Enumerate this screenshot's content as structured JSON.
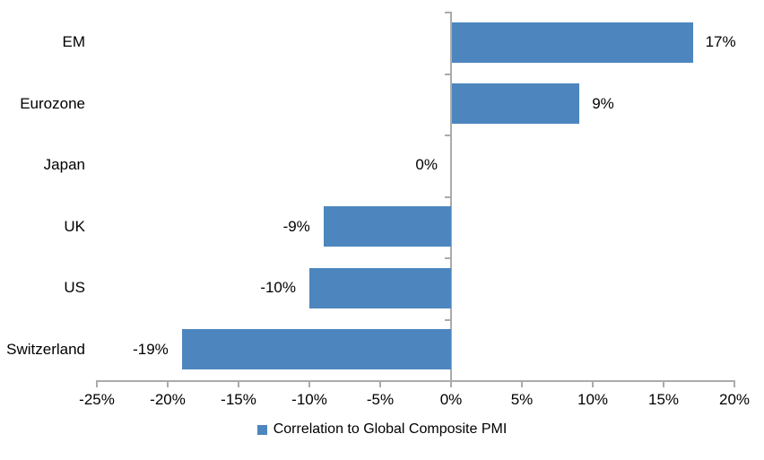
{
  "chart_data": {
    "type": "bar",
    "orientation": "horizontal",
    "title": "",
    "xlabel": "",
    "ylabel": "",
    "categories": [
      "EM",
      "Eurozone",
      "Japan",
      "UK",
      "US",
      "Switzerland"
    ],
    "values": [
      17,
      9,
      0,
      -9,
      -10,
      -19
    ],
    "value_labels": [
      "17%",
      "9%",
      "0%",
      "-9%",
      "-10%",
      "-19%"
    ],
    "series_name": "Correlation to Global Composite PMI",
    "xlim": [
      -25,
      20
    ],
    "x_tick_values": [
      -25,
      -20,
      -15,
      -10,
      -5,
      0,
      5,
      10,
      15,
      20
    ],
    "x_tick_labels": [
      "-25%",
      "-20%",
      "-15%",
      "-10%",
      "-5%",
      "0%",
      "5%",
      "10%",
      "15%",
      "20%"
    ],
    "grid": false,
    "legend_position": "bottom",
    "bar_color": "#4D86BE",
    "axis_color": "#ABABAB",
    "text_color": "#000000"
  },
  "legend": {
    "label": "Correlation to Global Composite PMI",
    "marker_color": "#4D86BE"
  }
}
